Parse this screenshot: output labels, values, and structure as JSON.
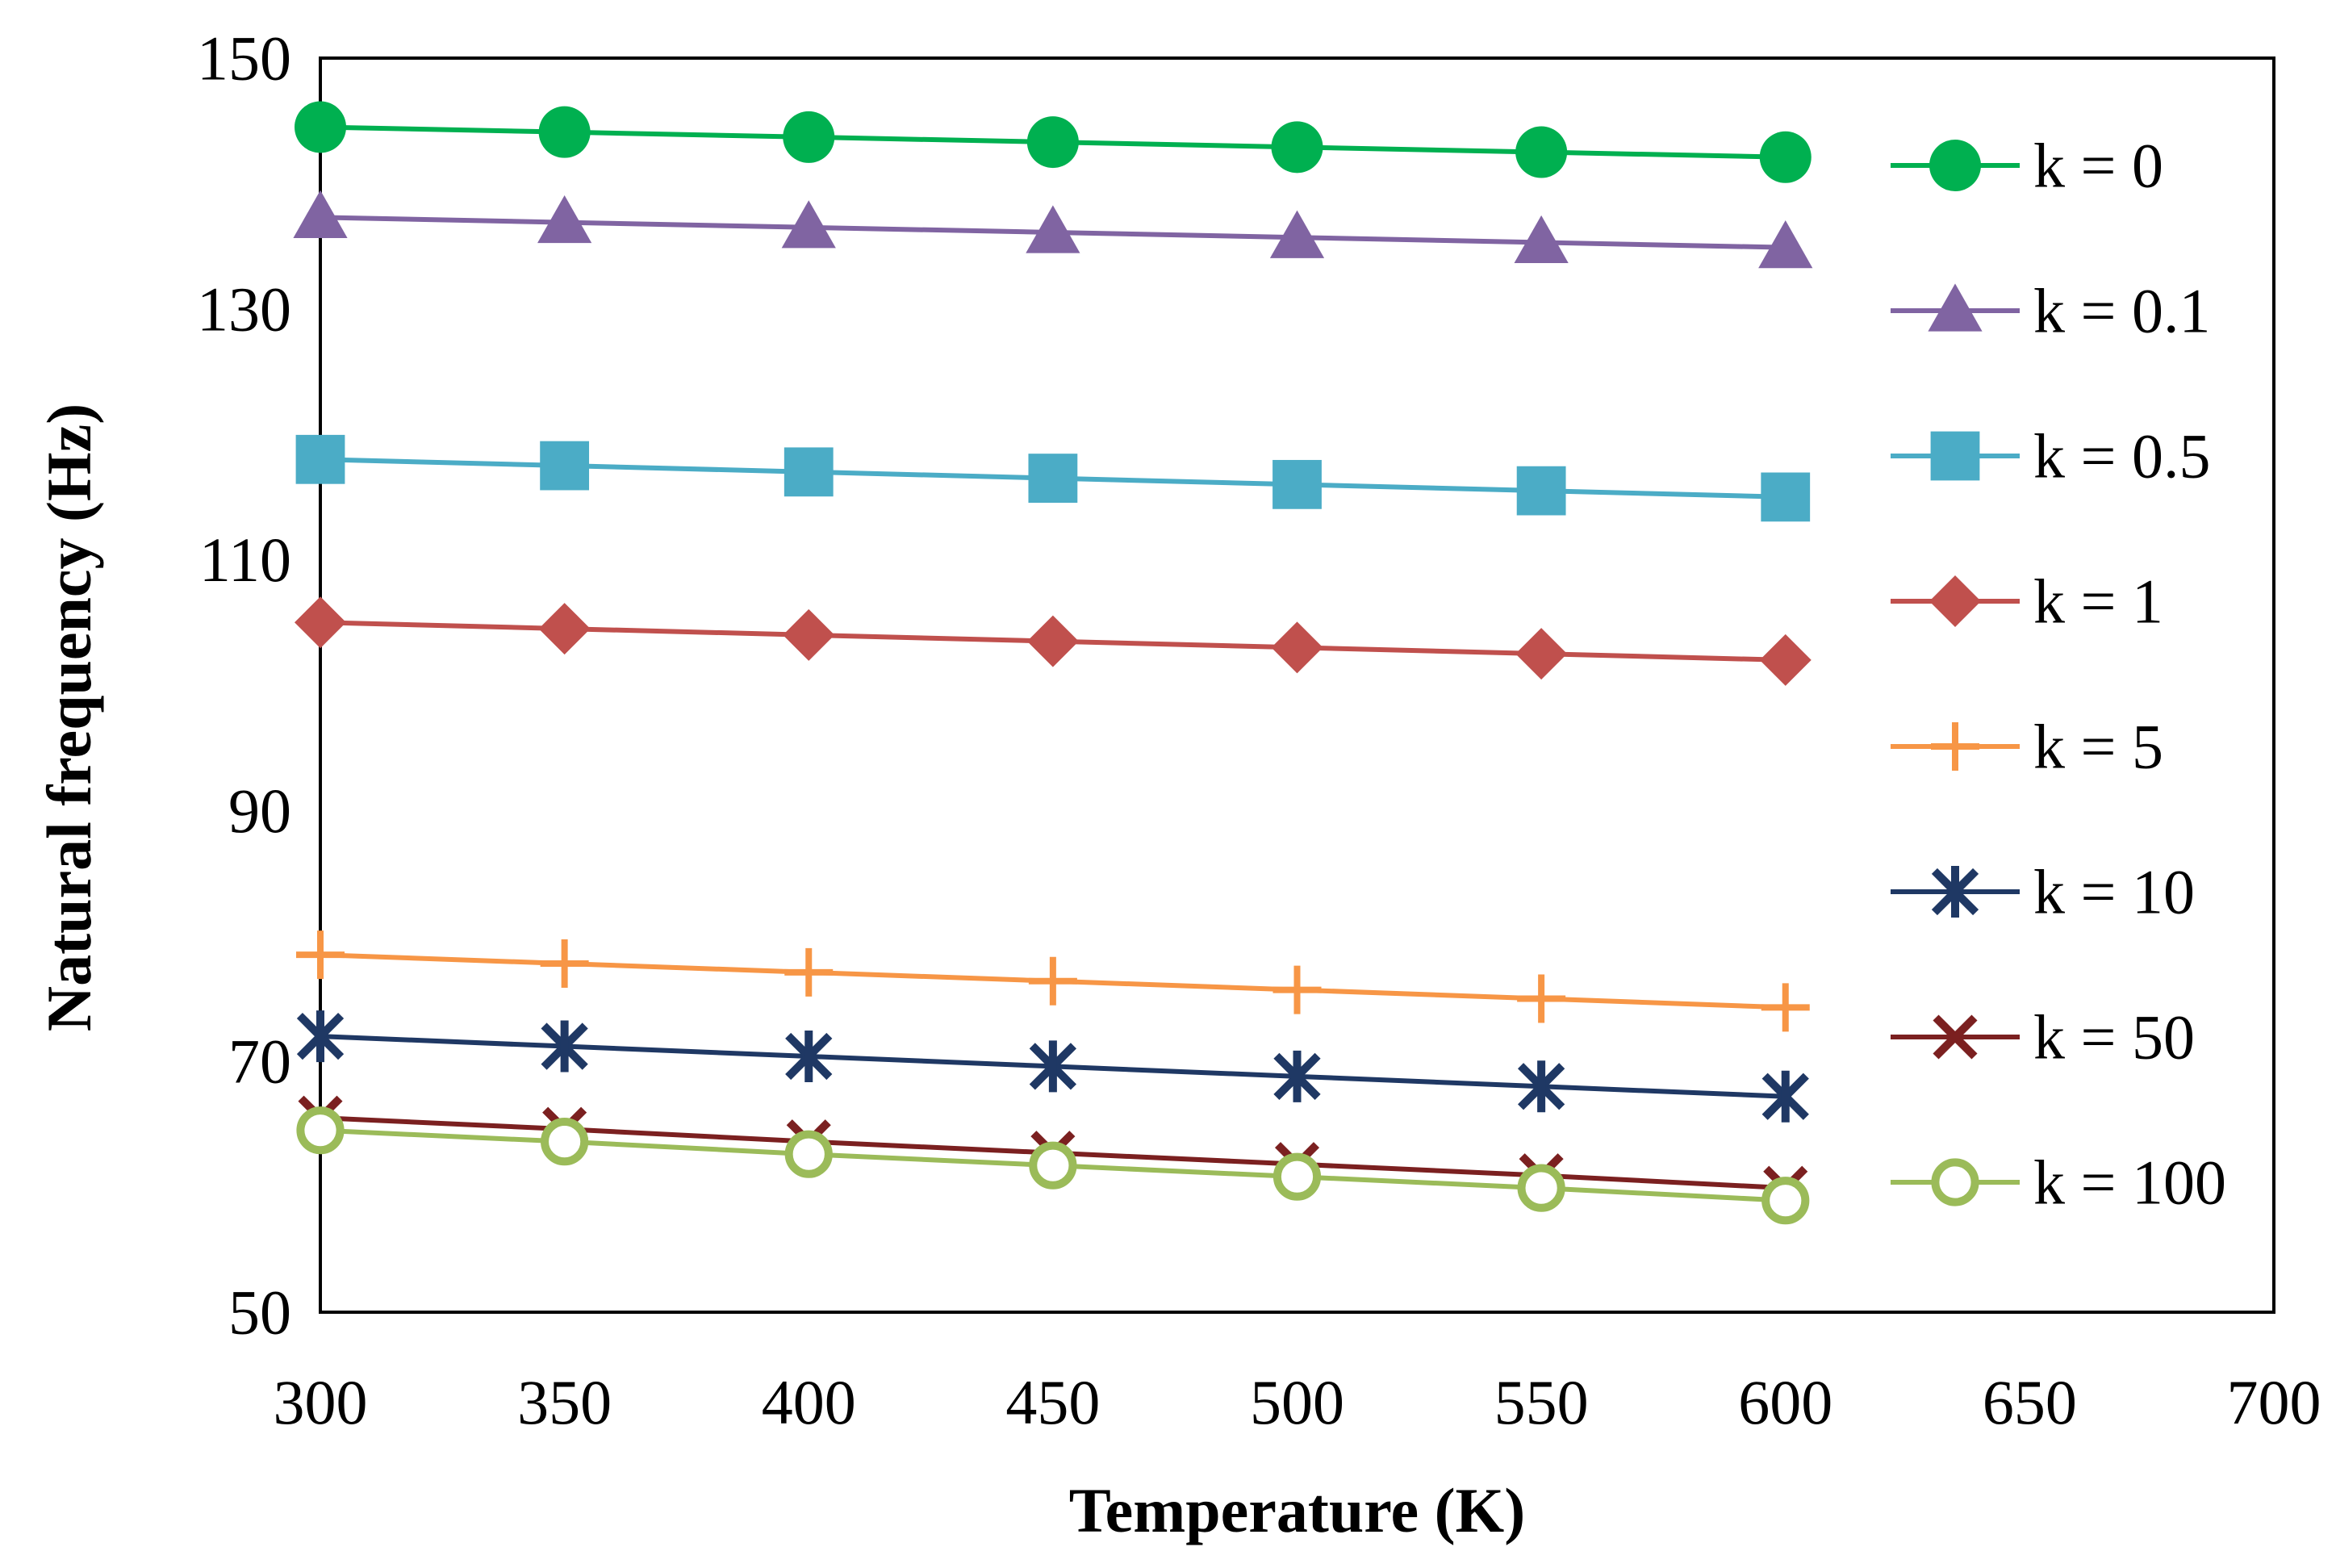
{
  "chart_data": {
    "type": "line",
    "title": "",
    "xlabel": "Temperature (K)",
    "ylabel": "Natural frequency (Hz)",
    "xlim": [
      300,
      700
    ],
    "ylim": [
      50,
      150
    ],
    "xticks": [
      300,
      350,
      400,
      450,
      500,
      550,
      600,
      650,
      700
    ],
    "yticks": [
      50,
      70,
      90,
      110,
      130,
      150
    ],
    "grid": false,
    "legend_position": "right",
    "x": [
      300,
      350,
      400,
      450,
      500,
      550,
      600
    ],
    "series": [
      {
        "name": "k = 0",
        "color": "#00b050",
        "marker": "circle",
        "values": [
          144.5,
          144.1,
          143.7,
          143.3,
          142.9,
          142.5,
          142.1
        ]
      },
      {
        "name": "k = 0.1",
        "color": "#8064a2",
        "marker": "triangle",
        "values": [
          137.3,
          136.9,
          136.5,
          136.1,
          135.7,
          135.3,
          134.9
        ]
      },
      {
        "name": "k = 0.5",
        "color": "#4bacc6",
        "marker": "square",
        "values": [
          118.0,
          117.5,
          117.0,
          116.5,
          116.0,
          115.5,
          115.0
        ]
      },
      {
        "name": "k = 1",
        "color": "#c0504d",
        "marker": "diamond",
        "values": [
          105.0,
          104.5,
          104.0,
          103.5,
          103.0,
          102.5,
          102.0
        ]
      },
      {
        "name": "k = 5",
        "color": "#f79646",
        "marker": "plus",
        "values": [
          78.5,
          77.8,
          77.1,
          76.4,
          75.7,
          75.0,
          74.3
        ]
      },
      {
        "name": "k = 10",
        "color": "#1f3864",
        "marker": "star",
        "values": [
          72.0,
          71.2,
          70.4,
          69.6,
          68.8,
          68.0,
          67.2
        ]
      },
      {
        "name": "k = 50",
        "color": "#7b2020",
        "marker": "x",
        "values": [
          65.5,
          64.6,
          63.6,
          62.7,
          61.8,
          60.9,
          59.9
        ]
      },
      {
        "name": "k = 100",
        "color": "#9bbb59",
        "marker": "open-circle",
        "values": [
          64.5,
          63.6,
          62.6,
          61.7,
          60.8,
          59.9,
          58.9
        ]
      }
    ]
  }
}
